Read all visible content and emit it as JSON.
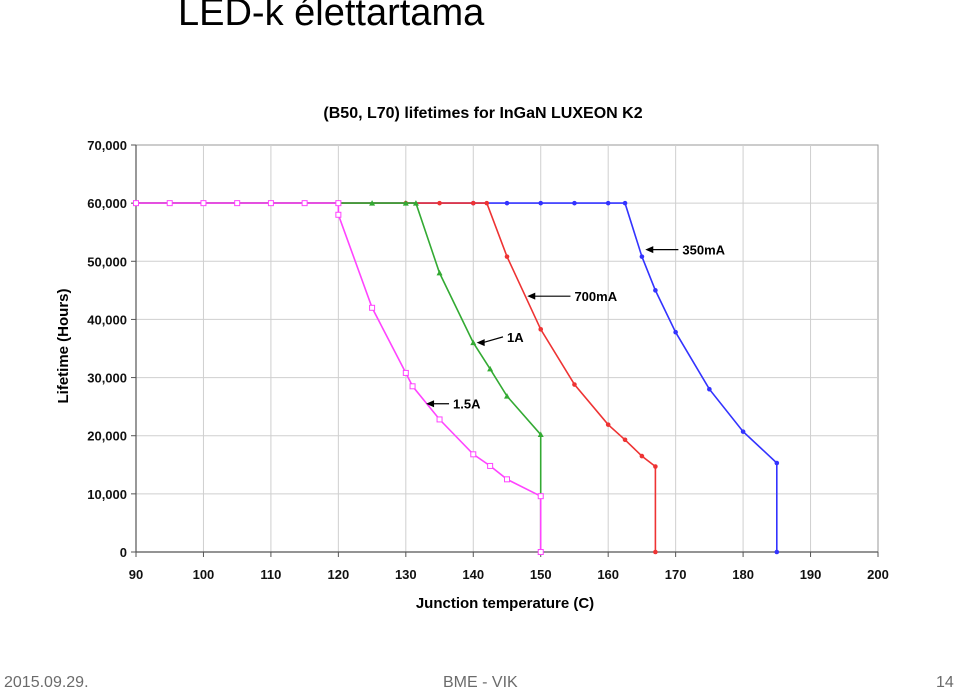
{
  "slide": {
    "title": "LED-k élettartama",
    "footer_date": "2015.09.29.",
    "footer_center": "BME - VIK",
    "page_number": "14"
  },
  "chart_data": {
    "type": "line",
    "title": "(B50, L70) lifetimes for InGaN LUXEON K2",
    "xlabel": "Junction temperature (C)",
    "ylabel": "Lifetime (Hours)",
    "xlim": [
      90,
      200
    ],
    "ylim": [
      0,
      70000
    ],
    "x_ticks": [
      "90",
      "100",
      "110",
      "120",
      "130",
      "140",
      "150",
      "160",
      "170",
      "180",
      "190",
      "200"
    ],
    "y_ticks": [
      "0",
      "10,000",
      "20,000",
      "30,000",
      "40,000",
      "50,000",
      "60,000",
      "70,000"
    ],
    "grid": true,
    "legend": "inline annotations with arrows",
    "series": [
      {
        "name": "350mA",
        "color": "#3333ff",
        "points": [
          [
            90,
            60000
          ],
          [
            140,
            60000
          ],
          [
            145,
            60000
          ],
          [
            150,
            60000
          ],
          [
            155,
            60000
          ],
          [
            160,
            60000
          ],
          [
            162.5,
            60000
          ],
          [
            165,
            50800
          ],
          [
            167,
            45000
          ],
          [
            170,
            37800
          ],
          [
            175,
            28000
          ],
          [
            180,
            20700
          ],
          [
            185,
            15300
          ],
          [
            185,
            0
          ]
        ]
      },
      {
        "name": "700mA",
        "color": "#ee3333",
        "points": [
          [
            90,
            60000
          ],
          [
            130,
            60000
          ],
          [
            135,
            60000
          ],
          [
            140,
            60000
          ],
          [
            142,
            60000
          ],
          [
            145,
            50800
          ],
          [
            150,
            38300
          ],
          [
            155,
            28800
          ],
          [
            160,
            21900
          ],
          [
            162.5,
            19300
          ],
          [
            165,
            16500
          ],
          [
            167,
            14700
          ],
          [
            167,
            0
          ]
        ]
      },
      {
        "name": "1A",
        "color": "#33aa33",
        "points": [
          [
            90,
            60000
          ],
          [
            120,
            60000
          ],
          [
            125,
            60000
          ],
          [
            130,
            60000
          ],
          [
            131.5,
            60000
          ],
          [
            135,
            48000
          ],
          [
            140,
            36000
          ],
          [
            142.5,
            31500
          ],
          [
            145,
            26800
          ],
          [
            150,
            20200
          ],
          [
            150,
            0
          ]
        ]
      },
      {
        "name": "1.5A",
        "color": "#ff44ff",
        "points": [
          [
            90,
            60000
          ],
          [
            95,
            60000
          ],
          [
            100,
            60000
          ],
          [
            105,
            60000
          ],
          [
            110,
            60000
          ],
          [
            115,
            60000
          ],
          [
            120,
            60000
          ],
          [
            120,
            58000
          ],
          [
            125,
            42000
          ],
          [
            130,
            30800
          ],
          [
            131,
            28500
          ],
          [
            135,
            22800
          ],
          [
            140,
            16800
          ],
          [
            142.5,
            14800
          ],
          [
            145,
            12500
          ],
          [
            150,
            9600
          ],
          [
            150,
            0
          ]
        ]
      }
    ],
    "annotations": [
      {
        "text": "350mA",
        "series": "350mA",
        "target": [
          165.5,
          52000
        ],
        "label_at": [
          171,
          52000
        ]
      },
      {
        "text": "700mA",
        "series": "700mA",
        "target": [
          148,
          44000
        ],
        "label_at": [
          155,
          44000
        ]
      },
      {
        "text": "1A",
        "series": "1A",
        "target": [
          140.5,
          36000
        ],
        "label_at": [
          145,
          37000
        ]
      },
      {
        "text": "1.5A",
        "series": "1.5A",
        "target": [
          133,
          25500
        ],
        "label_at": [
          137,
          25500
        ]
      }
    ]
  }
}
